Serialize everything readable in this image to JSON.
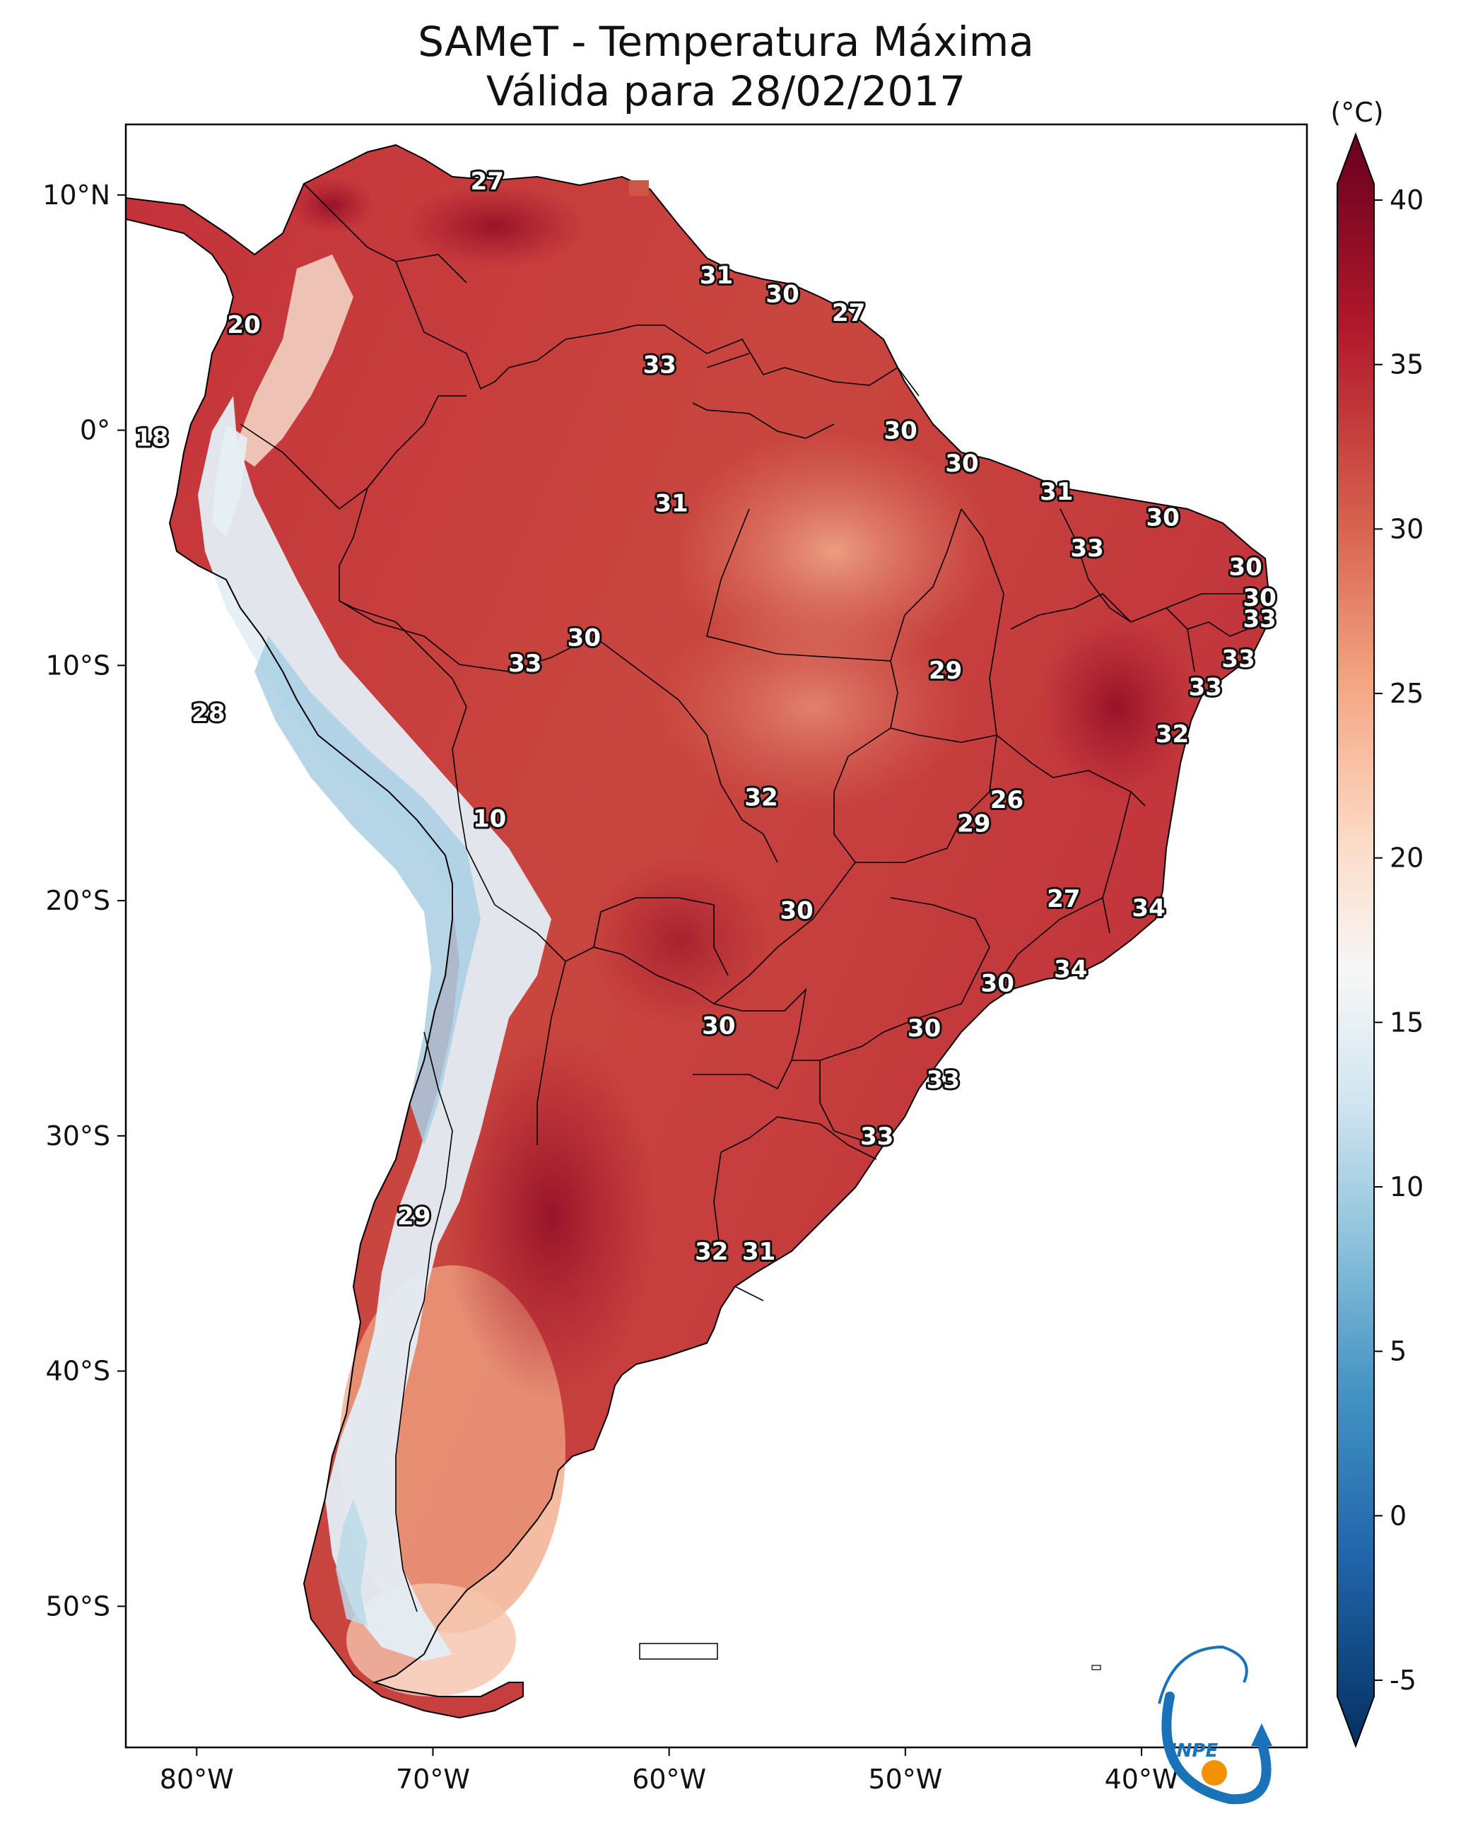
{
  "title": {
    "line1": "SAMeT - Temperatura Máxima",
    "line2": "Válida para 28/02/2017"
  },
  "map": {
    "lon_range": [
      -83,
      -33
    ],
    "lat_range": [
      -56,
      13
    ],
    "lat_ticks": [
      {
        "lat": 10,
        "label": "10°N"
      },
      {
        "lat": 0,
        "label": "0°"
      },
      {
        "lat": -10,
        "label": "10°S"
      },
      {
        "lat": -20,
        "label": "20°S"
      },
      {
        "lat": -30,
        "label": "30°S"
      },
      {
        "lat": -40,
        "label": "40°S"
      },
      {
        "lat": -50,
        "label": "50°S"
      }
    ],
    "lon_ticks": [
      {
        "lon": -80,
        "label": "80°W"
      },
      {
        "lon": -70,
        "label": "70°W"
      },
      {
        "lon": -60,
        "label": "60°W"
      },
      {
        "lon": -50,
        "label": "50°W"
      },
      {
        "lon": -40,
        "label": "40°W"
      }
    ],
    "station_labels": [
      {
        "lon": -67.7,
        "lat": 10.6,
        "value": "27"
      },
      {
        "lon": -78.0,
        "lat": 4.5,
        "value": "20"
      },
      {
        "lon": -58.0,
        "lat": 6.6,
        "value": "31"
      },
      {
        "lon": -55.2,
        "lat": 5.8,
        "value": "30"
      },
      {
        "lon": -52.4,
        "lat": 5.0,
        "value": "27"
      },
      {
        "lon": -60.4,
        "lat": 2.8,
        "value": "33"
      },
      {
        "lon": -81.9,
        "lat": -0.3,
        "value": "18"
      },
      {
        "lon": -50.2,
        "lat": 0.0,
        "value": "30"
      },
      {
        "lon": -47.6,
        "lat": -1.4,
        "value": "30"
      },
      {
        "lon": -59.9,
        "lat": -3.1,
        "value": "31"
      },
      {
        "lon": -43.6,
        "lat": -2.6,
        "value": "31"
      },
      {
        "lon": -39.1,
        "lat": -3.7,
        "value": "30"
      },
      {
        "lon": -42.3,
        "lat": -5.0,
        "value": "33"
      },
      {
        "lon": -35.6,
        "lat": -5.8,
        "value": "30"
      },
      {
        "lon": -35.0,
        "lat": -7.1,
        "value": "30"
      },
      {
        "lon": -35.0,
        "lat": -8.0,
        "value": "33"
      },
      {
        "lon": -63.6,
        "lat": -8.8,
        "value": "30"
      },
      {
        "lon": -66.1,
        "lat": -9.9,
        "value": "33"
      },
      {
        "lon": -48.3,
        "lat": -10.2,
        "value": "29"
      },
      {
        "lon": -35.9,
        "lat": -9.7,
        "value": "33"
      },
      {
        "lon": -37.3,
        "lat": -10.9,
        "value": "33"
      },
      {
        "lon": -79.5,
        "lat": -12.0,
        "value": "28"
      },
      {
        "lon": -38.7,
        "lat": -12.9,
        "value": "32"
      },
      {
        "lon": -67.6,
        "lat": -16.5,
        "value": "10"
      },
      {
        "lon": -56.1,
        "lat": -15.6,
        "value": "32"
      },
      {
        "lon": -45.7,
        "lat": -15.7,
        "value": "26"
      },
      {
        "lon": -47.1,
        "lat": -16.7,
        "value": "29"
      },
      {
        "lon": -54.6,
        "lat": -20.4,
        "value": "30"
      },
      {
        "lon": -43.3,
        "lat": -19.9,
        "value": "27"
      },
      {
        "lon": -39.7,
        "lat": -20.3,
        "value": "34"
      },
      {
        "lon": -43.0,
        "lat": -22.9,
        "value": "34"
      },
      {
        "lon": -46.1,
        "lat": -23.5,
        "value": "30"
      },
      {
        "lon": -57.9,
        "lat": -25.3,
        "value": "30"
      },
      {
        "lon": -49.2,
        "lat": -25.4,
        "value": "30"
      },
      {
        "lon": -48.4,
        "lat": -27.6,
        "value": "33"
      },
      {
        "lon": -51.2,
        "lat": -30.0,
        "value": "33"
      },
      {
        "lon": -70.8,
        "lat": -33.4,
        "value": "29"
      },
      {
        "lon": -58.2,
        "lat": -34.9,
        "value": "32"
      },
      {
        "lon": -56.2,
        "lat": -34.9,
        "value": "31"
      }
    ]
  },
  "colorbar": {
    "unit": "(°C)",
    "vmin": -7,
    "vmax": 42,
    "tick_values": [
      40,
      35,
      30,
      25,
      20,
      15,
      10,
      5,
      0,
      -5
    ],
    "tick_labels": [
      "40",
      "35",
      "30",
      "25",
      "20",
      "15",
      "10",
      "5",
      "0",
      "-5"
    ],
    "colors": [
      "#053061",
      "#2166ac",
      "#4393c3",
      "#92c5de",
      "#d1e5f0",
      "#f7f7f7",
      "#fddbc7",
      "#f4a582",
      "#d6604d",
      "#b2182b",
      "#67001f"
    ]
  },
  "logo": {
    "text": "INPE",
    "color_blue": "#1a73b8",
    "color_orange": "#f39200"
  }
}
